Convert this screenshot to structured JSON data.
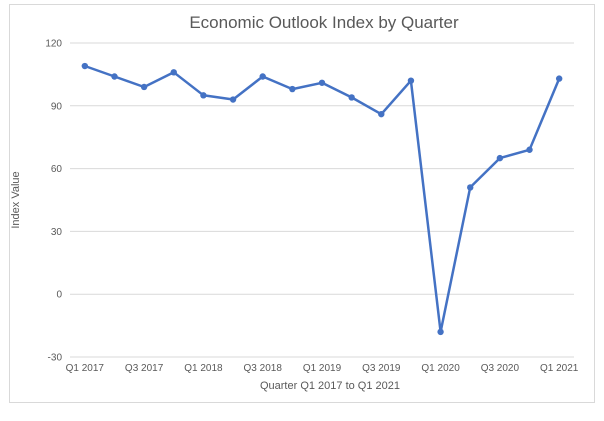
{
  "chart_data": {
    "type": "line",
    "title": "Economic Outlook Index by Quarter",
    "xlabel": "Quarter Q1 2017 to Q1 2021",
    "ylabel": "Index Value",
    "ylim": [
      -30,
      120
    ],
    "yticks": [
      -30,
      0,
      30,
      60,
      90,
      120
    ],
    "grid": true,
    "categories": [
      "Q1 2017",
      "Q2 2017",
      "Q3 2017",
      "Q4 2017",
      "Q1 2018",
      "Q2 2018",
      "Q3 2018",
      "Q4 2018",
      "Q1 2019",
      "Q2 2019",
      "Q3 2019",
      "Q4 2019",
      "Q1 2020",
      "Q2 2020",
      "Q3 2020",
      "Q4 2020",
      "Q1 2021"
    ],
    "xtick_labels": [
      "Q1 2017",
      "",
      "Q3 2017",
      "",
      "Q1 2018",
      "",
      "Q3 2018",
      "",
      "Q1 2019",
      "",
      "Q3 2019",
      "",
      "Q1 2020",
      "",
      "Q3 2020",
      "",
      "Q1 2021"
    ],
    "series": [
      {
        "values": [
          109,
          104,
          99,
          106,
          95,
          93,
          104,
          98,
          101,
          94,
          86,
          102,
          -18,
          51,
          65,
          69,
          103
        ],
        "color": "#4472c4"
      }
    ]
  }
}
